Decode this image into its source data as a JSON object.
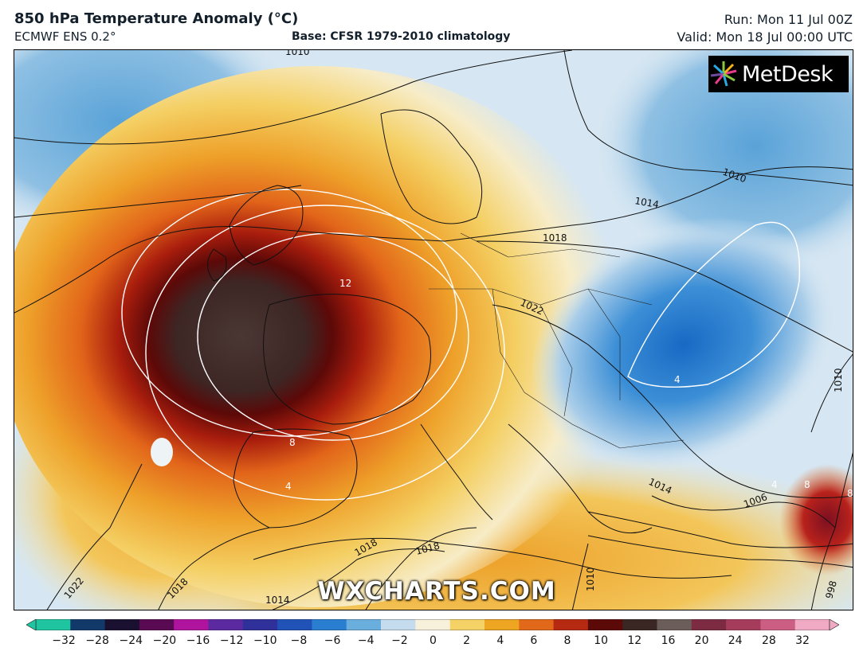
{
  "header": {
    "title": "850 hPa Temperature Anomaly (°C)",
    "subtitle": "ECMWF ENS 0.2°",
    "base": "Base: CFSR 1979-2010 climatology",
    "run": "Run: Mon 11 Jul 00Z",
    "valid": "Valid: Mon 18 Jul 00:00 UTC"
  },
  "map": {
    "logo_text": "MetDesk",
    "watermark": "WXCHARTS.COM",
    "pressure_labels": [
      "1010",
      "1010",
      "1014",
      "1018",
      "1022",
      "1010",
      "1014",
      "1006",
      "1018",
      "1018",
      "1014",
      "1018",
      "1022",
      "1010",
      "998"
    ],
    "anomaly_labels": [
      "12",
      "8",
      "4",
      "4",
      "8",
      "8",
      "4"
    ]
  },
  "colorbar": {
    "ticks": [
      "−32",
      "−28",
      "−24",
      "−20",
      "−16",
      "−12",
      "−10",
      "−8",
      "−6",
      "−4",
      "−2",
      "0",
      "2",
      "4",
      "6",
      "8",
      "10",
      "12",
      "16",
      "20",
      "24",
      "28",
      "32"
    ],
    "colors": [
      "#1fc5a0",
      "#113a6b",
      "#1a1030",
      "#5a0a52",
      "#b0149e",
      "#5c2aa0",
      "#30309a",
      "#2152b8",
      "#2a7ed0",
      "#6aaede",
      "#c5dcee",
      "#f7f1dc",
      "#f5d266",
      "#eea521",
      "#e2681a",
      "#b52a10",
      "#5c0a08",
      "#3a2623",
      "#6b5d5a",
      "#7c2b43",
      "#a63c5b",
      "#cc5e83",
      "#f0aac4"
    ]
  }
}
